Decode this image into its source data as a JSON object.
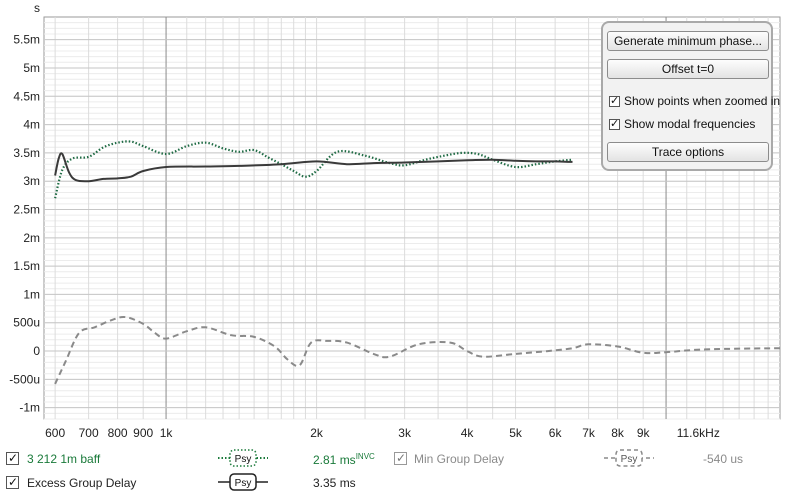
{
  "chart_data": {
    "type": "line",
    "xscale": "log",
    "xlim": [
      570,
      16900
    ],
    "ylim": [
      -0.0012,
      0.0059
    ],
    "y_unit_label": "s",
    "x_ticks": [
      {
        "v": 600,
        "label": "600"
      },
      {
        "v": 700,
        "label": "700"
      },
      {
        "v": 800,
        "label": "800"
      },
      {
        "v": 900,
        "label": "900"
      },
      {
        "v": 1000,
        "label": "1k"
      },
      {
        "v": 2000,
        "label": "2k"
      },
      {
        "v": 3000,
        "label": "3k"
      },
      {
        "v": 4000,
        "label": "4k"
      },
      {
        "v": 5000,
        "label": "5k"
      },
      {
        "v": 6000,
        "label": "6k"
      },
      {
        "v": 7000,
        "label": "7k"
      },
      {
        "v": 8000,
        "label": "8k"
      },
      {
        "v": 9000,
        "label": "9k"
      },
      {
        "v": 11600,
        "label": "11.6kHz"
      }
    ],
    "y_ticks": [
      {
        "v": 0.0055,
        "label": "5.5m"
      },
      {
        "v": 0.005,
        "label": "5m"
      },
      {
        "v": 0.0045,
        "label": "4.5m"
      },
      {
        "v": 0.004,
        "label": "4m"
      },
      {
        "v": 0.0035,
        "label": "3.5m"
      },
      {
        "v": 0.003,
        "label": "3m"
      },
      {
        "v": 0.0025,
        "label": "2.5m"
      },
      {
        "v": 0.002,
        "label": "2m"
      },
      {
        "v": 0.0015,
        "label": "1.5m"
      },
      {
        "v": 0.001,
        "label": "1m"
      },
      {
        "v": 0.0005,
        "label": "500u"
      },
      {
        "v": 0,
        "label": "0"
      },
      {
        "v": -0.0005,
        "label": "-500u"
      },
      {
        "v": -0.001,
        "label": "-1m"
      }
    ],
    "series": [
      {
        "name": "3 212 1m baff",
        "style": "dotted",
        "color": "#1f6b44",
        "x": [
          600,
          620,
          650,
          700,
          750,
          800,
          850,
          900,
          1000,
          1100,
          1200,
          1300,
          1400,
          1500,
          1600,
          1700,
          1800,
          1900,
          2000,
          2200,
          2500,
          2800,
          3000,
          3300,
          3600,
          3900,
          4200,
          4500,
          5000,
          5500,
          6000,
          6500
        ],
        "y": [
          0.0027,
          0.0032,
          0.0034,
          0.00343,
          0.0036,
          0.00368,
          0.0037,
          0.00362,
          0.00348,
          0.00362,
          0.00368,
          0.00358,
          0.00352,
          0.00355,
          0.00342,
          0.0033,
          0.00318,
          0.00308,
          0.00318,
          0.00352,
          0.00345,
          0.00332,
          0.00328,
          0.00338,
          0.00345,
          0.0035,
          0.00348,
          0.00338,
          0.00325,
          0.0033,
          0.00335,
          0.00338
        ]
      },
      {
        "name": "Excess Group Delay",
        "style": "solid",
        "color": "#3a3a3a",
        "x": [
          600,
          610,
          620,
          640,
          660,
          700,
          750,
          800,
          850,
          900,
          1000,
          1200,
          1400,
          1700,
          2000,
          2300,
          2600,
          3000,
          3500,
          4000,
          4500,
          5000,
          5500,
          6000,
          6500
        ],
        "y": [
          0.0031,
          0.0034,
          0.00348,
          0.00315,
          0.00302,
          0.003,
          0.00304,
          0.00305,
          0.00308,
          0.00318,
          0.00325,
          0.00326,
          0.00327,
          0.0033,
          0.00335,
          0.0033,
          0.00332,
          0.00333,
          0.00335,
          0.00337,
          0.00338,
          0.00336,
          0.00335,
          0.00335,
          0.00334
        ]
      },
      {
        "name": "Min Group Delay",
        "style": "dashed",
        "color": "#8a8a8a",
        "x": [
          600,
          630,
          670,
          720,
          780,
          830,
          900,
          950,
          1000,
          1100,
          1200,
          1350,
          1500,
          1650,
          1750,
          1850,
          1950,
          2100,
          2300,
          2600,
          2800,
          3200,
          3700,
          4000,
          4300,
          5000,
          5800,
          6500,
          7000,
          8000,
          9000,
          10000,
          12000,
          16900
        ],
        "y": [
          -0.00058,
          -0.00018,
          0.00032,
          0.00042,
          0.00055,
          0.0006,
          0.00048,
          0.00032,
          0.00022,
          0.00035,
          0.00042,
          0.00028,
          0.00025,
          8e-05,
          -0.00015,
          -0.00025,
          0.00015,
          0.00018,
          0.00015,
          -5e-05,
          -0.0001,
          0.00012,
          0.00015,
          0.0,
          -0.0001,
          -5e-05,
          0.0,
          5e-05,
          0.00012,
          8e-05,
          -3e-05,
          -2e-05,
          3e-05,
          5e-05
        ]
      }
    ],
    "legend": [
      {
        "label": "3 212 1m baff",
        "value": "2.81 ms",
        "sup": "INVC",
        "checked": true,
        "color": "#1a7a3a",
        "style": "dotted"
      },
      {
        "label": "Min Group Delay",
        "value": "-540 us",
        "checked": true,
        "color": "#8a8a8a",
        "style": "dashed"
      },
      {
        "label": "Excess Group Delay",
        "value": "3.35 ms",
        "checked": true,
        "color": "#222222",
        "style": "solid"
      }
    ]
  },
  "options_panel": {
    "generate_button": "Generate minimum phase...",
    "offset_button": "Offset t=0",
    "show_points_label": "Show points when zoomed in",
    "show_modal_label": "Show modal frequencies",
    "trace_options_button": "Trace options"
  },
  "legend_badge_text": "Psy"
}
